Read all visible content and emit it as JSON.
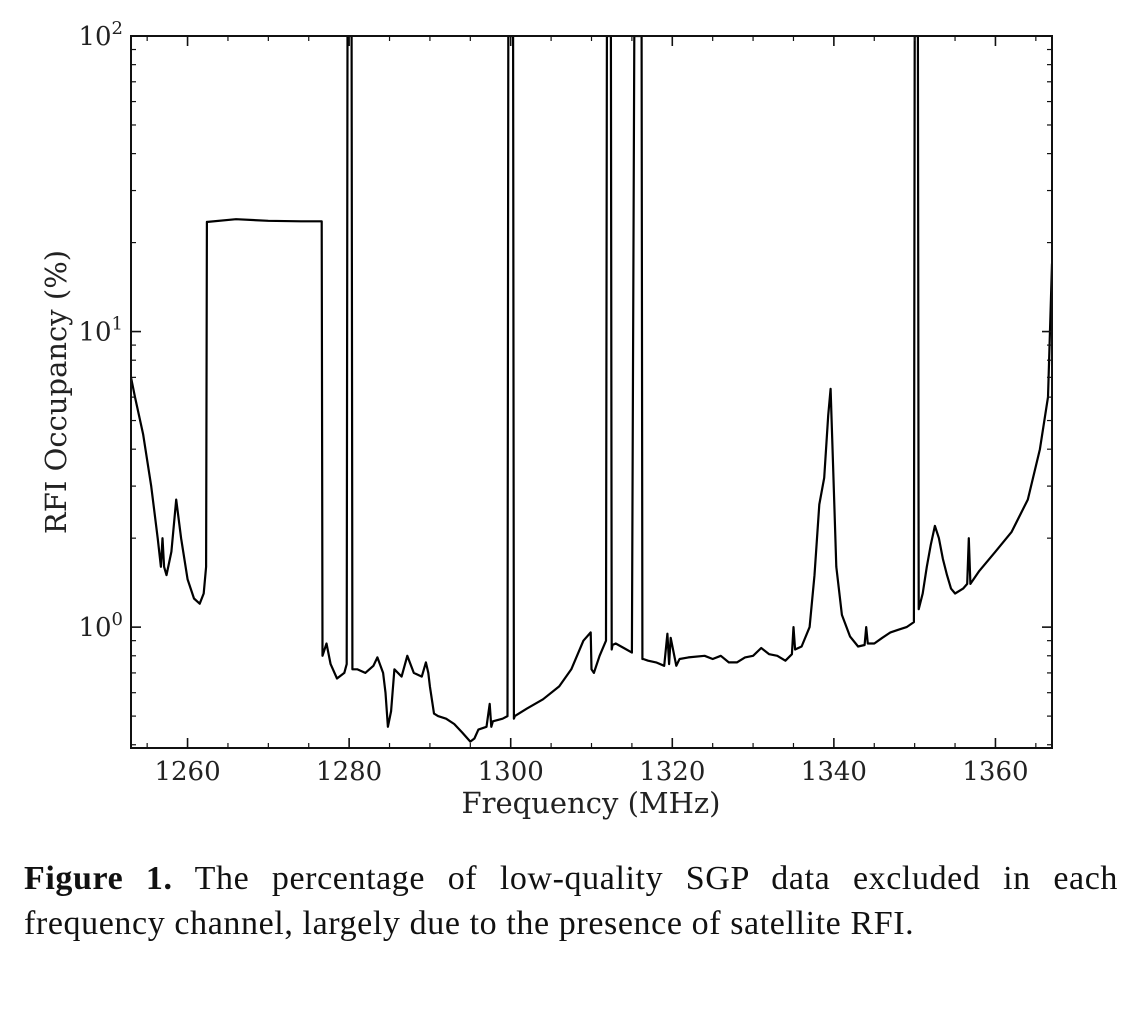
{
  "caption": {
    "label": "Figure 1.",
    "text": "The percentage of low-quality SGP data excluded in each frequency channel, largely due to the presence of satellite RFI."
  },
  "chart_data": {
    "type": "line",
    "title": "",
    "xlabel": "Frequency (MHz)",
    "ylabel": "RFI Occupancy (%)",
    "xlim": [
      1253,
      1367
    ],
    "ylim": [
      0.39,
      100
    ],
    "yscale": "log",
    "grid": false,
    "line_color": "#000000",
    "x_ticks": [
      1260,
      1280,
      1300,
      1320,
      1340,
      1360
    ],
    "x_tick_labels": [
      "1260",
      "1280",
      "1300",
      "1320",
      "1340",
      "1360"
    ],
    "y_ticks": [
      {
        "base": "10",
        "exp": "0",
        "value": 1
      },
      {
        "base": "10",
        "exp": "1",
        "value": 10
      },
      {
        "base": "10",
        "exp": "2",
        "value": 100
      }
    ],
    "series": [
      {
        "x": [
          1253.0,
          1253.5,
          1254.5,
          1255.5,
          1256.3,
          1256.7,
          1256.9,
          1257.1,
          1257.4,
          1258.0,
          1258.6,
          1259.2,
          1260.0,
          1260.8,
          1261.5,
          1262.0,
          1262.3,
          1262.4,
          1262.5,
          1266.0,
          1270.0,
          1274.0,
          1276.5,
          1276.6,
          1276.7,
          1277.2,
          1277.7,
          1278.5,
          1279.4,
          1279.7,
          1279.8,
          1279.9,
          1280.2,
          1280.3,
          1280.4,
          1281.0,
          1282.0,
          1283.0,
          1283.5,
          1284.2,
          1284.5,
          1284.8,
          1285.2,
          1285.6,
          1286.5,
          1287.2,
          1288.0,
          1289.0,
          1289.5,
          1289.8,
          1290.0,
          1290.5,
          1291.0,
          1292.0,
          1293.0,
          1294.0,
          1295.0,
          1295.5,
          1296.0,
          1297.0,
          1297.4,
          1297.6,
          1297.8,
          1299.0,
          1299.6,
          1299.7,
          1299.8,
          1300.3,
          1300.4,
          1300.5,
          1302.0,
          1304.0,
          1306.0,
          1307.5,
          1309.0,
          1309.9,
          1310.0,
          1310.3,
          1311.0,
          1311.8,
          1311.9,
          1312.0,
          1312.4,
          1312.5,
          1312.6,
          1313.0,
          1314.0,
          1315.0,
          1315.3,
          1315.4,
          1315.5,
          1316.2,
          1316.3,
          1316.4,
          1317.0,
          1318.0,
          1319.0,
          1319.4,
          1319.6,
          1319.8,
          1320.5,
          1320.7,
          1320.9,
          1322.0,
          1324.0,
          1325.0,
          1326.0,
          1327.0,
          1328.0,
          1329.0,
          1330.0,
          1331.0,
          1332.0,
          1333.0,
          1334.0,
          1334.8,
          1335.0,
          1335.2,
          1336.0,
          1337.0,
          1337.6,
          1338.2,
          1338.8,
          1339.3,
          1339.6,
          1339.9,
          1340.3,
          1341.0,
          1342.0,
          1343.0,
          1343.8,
          1344.0,
          1344.2,
          1345.0,
          1346.0,
          1347.0,
          1348.0,
          1349.0,
          1349.9,
          1350.0,
          1350.1,
          1350.3,
          1350.4,
          1350.5,
          1351.0,
          1351.5,
          1352.0,
          1352.5,
          1353.0,
          1353.5,
          1354.0,
          1354.5,
          1355.0,
          1356.0,
          1356.5,
          1356.7,
          1356.9,
          1358.0,
          1360.0,
          1362.0,
          1364.0,
          1365.5,
          1366.5,
          1367.0
        ],
        "y": [
          7.0,
          6.0,
          4.5,
          3.0,
          2.0,
          1.6,
          2.0,
          1.6,
          1.5,
          1.8,
          2.7,
          2.0,
          1.45,
          1.25,
          1.2,
          1.3,
          1.6,
          23.5,
          23.5,
          24.0,
          23.7,
          23.6,
          23.6,
          23.6,
          0.8,
          0.88,
          0.75,
          0.67,
          0.7,
          0.75,
          100,
          100,
          100,
          100,
          0.72,
          0.72,
          0.7,
          0.74,
          0.79,
          0.7,
          0.6,
          0.46,
          0.52,
          0.72,
          0.68,
          0.8,
          0.7,
          0.68,
          0.76,
          0.7,
          0.63,
          0.51,
          0.5,
          0.49,
          0.47,
          0.44,
          0.41,
          0.42,
          0.45,
          0.46,
          0.55,
          0.46,
          0.48,
          0.49,
          0.5,
          100,
          100,
          100,
          0.49,
          0.5,
          0.53,
          0.57,
          0.63,
          0.72,
          0.9,
          0.96,
          0.72,
          0.7,
          0.8,
          0.9,
          100,
          100,
          100,
          0.84,
          0.87,
          0.88,
          0.85,
          0.82,
          100,
          100,
          100,
          100,
          0.78,
          0.78,
          0.77,
          0.76,
          0.74,
          0.95,
          0.75,
          0.92,
          0.74,
          0.76,
          0.78,
          0.79,
          0.8,
          0.78,
          0.8,
          0.76,
          0.76,
          0.79,
          0.8,
          0.85,
          0.81,
          0.8,
          0.77,
          0.81,
          1.0,
          0.84,
          0.86,
          1.0,
          1.5,
          2.6,
          3.2,
          5.2,
          6.4,
          3.5,
          1.6,
          1.1,
          0.93,
          0.86,
          0.87,
          1.0,
          0.88,
          0.88,
          0.92,
          0.96,
          0.98,
          1.0,
          1.04,
          100,
          100,
          100,
          100,
          1.15,
          1.3,
          1.6,
          1.9,
          2.2,
          2.0,
          1.7,
          1.5,
          1.35,
          1.3,
          1.35,
          1.4,
          2.0,
          1.4,
          1.55,
          1.8,
          2.1,
          2.7,
          4.0,
          6.0,
          17.0
        ]
      }
    ]
  }
}
